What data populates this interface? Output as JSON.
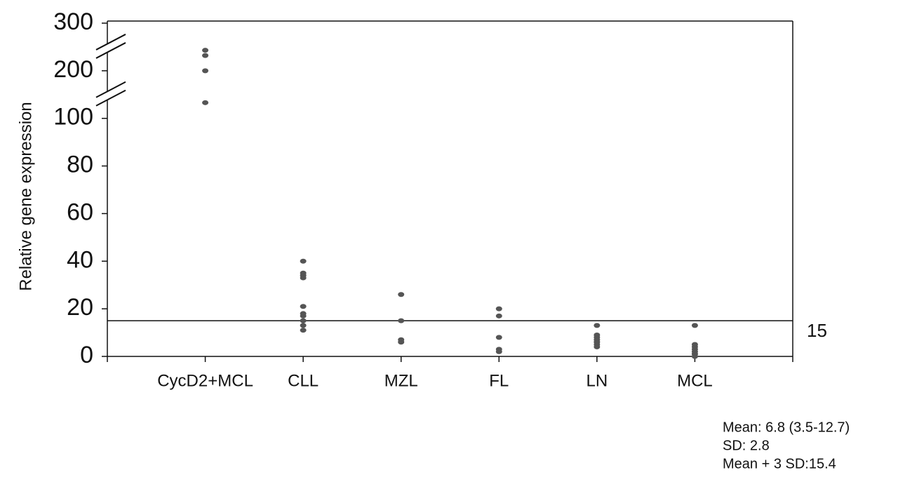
{
  "chart_data": {
    "type": "dotplot",
    "ylabel": "Relative gene expression",
    "categories": [
      "CycD2+MCL",
      "CLL",
      "MZL",
      "FL",
      "LN",
      "MCL"
    ],
    "values": [
      [
        243,
        232,
        200,
        133
      ],
      [
        40,
        35,
        34,
        33,
        21,
        18,
        17,
        15,
        13,
        11
      ],
      [
        26,
        15,
        7,
        6
      ],
      [
        20,
        17,
        8,
        3,
        2
      ],
      [
        13,
        9,
        8,
        7,
        6,
        5,
        4
      ],
      [
        13,
        5,
        4,
        3,
        2,
        1,
        0
      ]
    ],
    "color": "#555555",
    "ylim": [
      0,
      300
    ],
    "yticks": [
      0,
      20,
      40,
      60,
      80,
      100,
      200,
      300
    ],
    "reference_line": 15,
    "notes": [
      "Mean: 6.8 (3.5-12.7)",
      "SD: 2.8",
      "Mean + 3 SD:15.4"
    ]
  }
}
